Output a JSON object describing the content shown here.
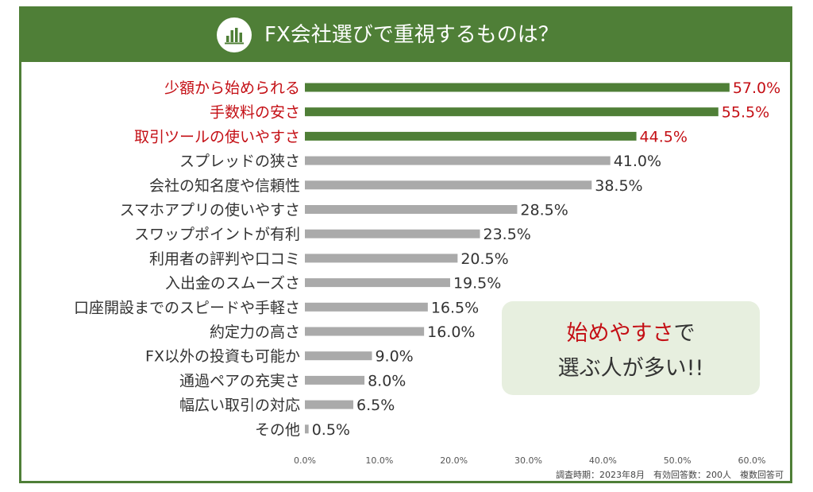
{
  "header": {
    "title": "FX会社選びで重視するものは？",
    "icon": "bar-chart-icon"
  },
  "colors": {
    "brand": "#4f7f37",
    "highlight_bar": "#4f7f37",
    "normal_bar": "#aaaaaa",
    "highlight_text": "#c40f15",
    "normal_text": "#333333",
    "callout_bg": "#e7efdf"
  },
  "callout": {
    "highlight": "始めやすさ",
    "line1_rest": "で",
    "line2": "選ぶ人が多い!!"
  },
  "footnote": "調査時期：2023年8月　有効回答数：200人　複数回答可",
  "chart_data": {
    "type": "bar",
    "orientation": "horizontal",
    "categories": [
      "少額から始められる",
      "手数料の安さ",
      "取引ツールの使いやすさ",
      "スプレッドの狭さ",
      "会社の知名度や信頼性",
      "スマホアプリの使いやすさ",
      "スワップポイントが有利",
      "利用者の評判や口コミ",
      "入出金のスムーズさ",
      "口座開設までのスピードや手軽さ",
      "約定力の高さ",
      "FX以外の投資も可能か",
      "通過ペアの充実さ",
      "幅広い取引の対応",
      "その他"
    ],
    "values": [
      57.0,
      55.5,
      44.5,
      41.0,
      38.5,
      28.5,
      23.5,
      20.5,
      19.5,
      16.5,
      16.0,
      9.0,
      8.0,
      6.5,
      0.5
    ],
    "value_labels": [
      "57.0%",
      "55.5%",
      "44.5%",
      "41.0%",
      "38.5%",
      "28.5%",
      "23.5%",
      "20.5%",
      "19.5%",
      "16.5%",
      "16.0%",
      "9.0%",
      "8.0%",
      "6.5%",
      "0.5%"
    ],
    "highlighted": [
      true,
      true,
      true,
      false,
      false,
      false,
      false,
      false,
      false,
      false,
      false,
      false,
      false,
      false,
      false
    ],
    "xlim": [
      0,
      60
    ],
    "x_ticks": [
      "0.0%",
      "10.0%",
      "20.0%",
      "30.0%",
      "40.0%",
      "50.0%",
      "60.0%"
    ],
    "title": "FX会社選びで重視するものは？",
    "grid": false,
    "legend": "none"
  }
}
